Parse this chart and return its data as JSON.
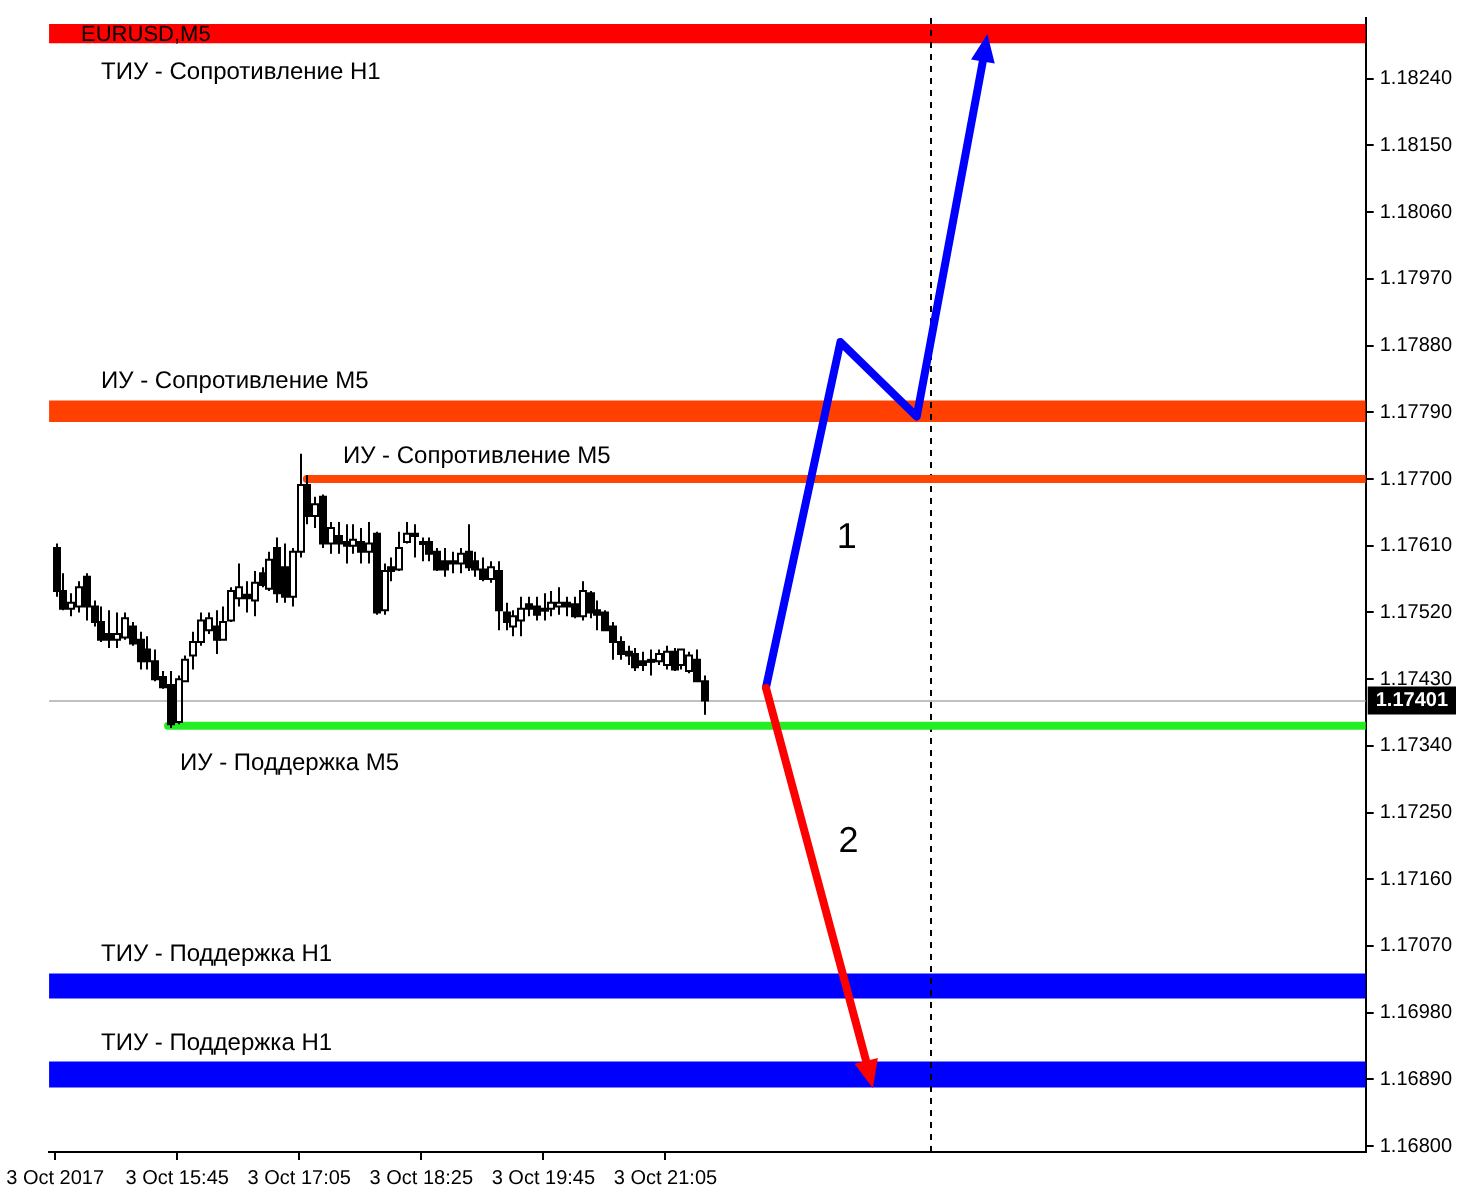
{
  "chart_data": {
    "type": "candlestick",
    "title": "EURUSD,M5",
    "xlim": [
      "2017-10-03T14:21",
      "2017-10-04T04:44"
    ],
    "ylim": [
      1.16792,
      1.18322
    ],
    "xticks": [
      {
        "value": "2017-10-03T14:25",
        "label": "3 Oct 2017"
      },
      {
        "value": "2017-10-03T15:45",
        "label": "3 Oct 15:45"
      },
      {
        "value": "2017-10-03T17:05",
        "label": "3 Oct 17:05"
      },
      {
        "value": "2017-10-03T18:25",
        "label": "3 Oct 18:25"
      },
      {
        "value": "2017-10-03T19:45",
        "label": "3 Oct 19:45"
      },
      {
        "value": "2017-10-03T21:05",
        "label": "3 Oct 21:05"
      }
    ],
    "yticks": [
      {
        "value": 1.168,
        "label": "1.16800"
      },
      {
        "value": 1.1689,
        "label": "1.16890"
      },
      {
        "value": 1.1698,
        "label": "1.16980"
      },
      {
        "value": 1.1707,
        "label": "1.17070"
      },
      {
        "value": 1.1716,
        "label": "1.17160"
      },
      {
        "value": 1.1725,
        "label": "1.17250"
      },
      {
        "value": 1.1734,
        "label": "1.17340"
      },
      {
        "value": 1.1743,
        "label": "1.17430"
      },
      {
        "value": 1.1752,
        "label": "1.17520"
      },
      {
        "value": 1.1761,
        "label": "1.17610"
      },
      {
        "value": 1.177,
        "label": "1.17700"
      },
      {
        "value": 1.1779,
        "label": "1.17790"
      },
      {
        "value": 1.1788,
        "label": "1.17880"
      },
      {
        "value": 1.1797,
        "label": "1.17970"
      },
      {
        "value": 1.1806,
        "label": "1.18060"
      },
      {
        "value": 1.1815,
        "label": "1.18150"
      },
      {
        "value": 1.1824,
        "label": "1.18240"
      }
    ],
    "grid": false,
    "legend": false,
    "series": [
      {
        "color": "#000000",
        "x": [
          "2017-10-03T14:25",
          "2017-10-03T14:30",
          "2017-10-03T14:35",
          "2017-10-03T14:40",
          "2017-10-03T14:45",
          "2017-10-03T14:50",
          "2017-10-03T14:55",
          "2017-10-03T15:00",
          "2017-10-03T15:05",
          "2017-10-03T15:10",
          "2017-10-03T15:15",
          "2017-10-03T15:20",
          "2017-10-03T15:25",
          "2017-10-03T15:30",
          "2017-10-03T15:35",
          "2017-10-03T15:40",
          "2017-10-03T15:45",
          "2017-10-03T15:50",
          "2017-10-03T15:55",
          "2017-10-03T16:00",
          "2017-10-03T16:05",
          "2017-10-03T16:10",
          "2017-10-03T16:15",
          "2017-10-03T16:20",
          "2017-10-03T16:25",
          "2017-10-03T16:30",
          "2017-10-03T16:35",
          "2017-10-03T16:40",
          "2017-10-03T16:45",
          "2017-10-03T16:50",
          "2017-10-03T16:55",
          "2017-10-03T17:00",
          "2017-10-03T17:05",
          "2017-10-03T17:10",
          "2017-10-03T17:15",
          "2017-10-03T17:20",
          "2017-10-03T17:25",
          "2017-10-03T17:30",
          "2017-10-03T17:35",
          "2017-10-03T17:40",
          "2017-10-03T17:45",
          "2017-10-03T17:50",
          "2017-10-03T17:55",
          "2017-10-03T18:00",
          "2017-10-03T18:05",
          "2017-10-03T18:10",
          "2017-10-03T18:15",
          "2017-10-03T18:20",
          "2017-10-03T18:25",
          "2017-10-03T18:30",
          "2017-10-03T18:35",
          "2017-10-03T18:40",
          "2017-10-03T18:45",
          "2017-10-03T18:50",
          "2017-10-03T18:55",
          "2017-10-03T19:00",
          "2017-10-03T19:05",
          "2017-10-03T19:10",
          "2017-10-03T19:15",
          "2017-10-03T19:20",
          "2017-10-03T19:25",
          "2017-10-03T19:30",
          "2017-10-03T19:35",
          "2017-10-03T19:40",
          "2017-10-03T19:45",
          "2017-10-03T19:50",
          "2017-10-03T19:55",
          "2017-10-03T20:00",
          "2017-10-03T20:05",
          "2017-10-03T20:10",
          "2017-10-03T20:15",
          "2017-10-03T20:20",
          "2017-10-03T20:25",
          "2017-10-03T20:30",
          "2017-10-03T20:35",
          "2017-10-03T20:40",
          "2017-10-03T20:45",
          "2017-10-03T20:50",
          "2017-10-03T20:55",
          "2017-10-03T21:00",
          "2017-10-03T21:05",
          "2017-10-03T21:10",
          "2017-10-03T21:15",
          "2017-10-03T21:20",
          "2017-10-03T21:25",
          "2017-10-03T21:30"
        ],
        "ohlc": [
          [
            1.17607,
            1.17613,
            1.17541,
            1.17549
          ],
          [
            1.17549,
            1.17573,
            1.17523,
            1.17525
          ],
          [
            1.17525,
            1.17546,
            1.17515,
            1.17533
          ],
          [
            1.17528,
            1.17562,
            1.1752,
            1.17554
          ],
          [
            1.17568,
            1.17573,
            1.17509,
            1.17528
          ],
          [
            1.17528,
            1.17536,
            1.17501,
            1.17507
          ],
          [
            1.17507,
            1.17528,
            1.1748,
            1.17483
          ],
          [
            1.17491,
            1.17523,
            1.17472,
            1.17483
          ],
          [
            1.17483,
            1.1752,
            1.17472,
            1.17491
          ],
          [
            1.17486,
            1.1752,
            1.17483,
            1.17512
          ],
          [
            1.17501,
            1.17507,
            1.17475,
            1.17478
          ],
          [
            1.17483,
            1.17494,
            1.17443,
            1.17454
          ],
          [
            1.1747,
            1.17488,
            1.17443,
            1.17454
          ],
          [
            1.17454,
            1.1747,
            1.17427,
            1.1743
          ],
          [
            1.17433,
            1.17441,
            1.17417,
            1.17419
          ],
          [
            1.17422,
            1.17441,
            1.17364,
            1.17369
          ],
          [
            1.17372,
            1.17435,
            1.17369,
            1.1743
          ],
          [
            1.17427,
            1.17462,
            1.17427,
            1.17456
          ],
          [
            1.17462,
            1.17494,
            1.17443,
            1.1748
          ],
          [
            1.1748,
            1.1752,
            1.17475,
            1.17509
          ],
          [
            1.17496,
            1.1752,
            1.17491,
            1.17512
          ],
          [
            1.17501,
            1.17523,
            1.17464,
            1.17483
          ],
          [
            1.17483,
            1.17528,
            1.17483,
            1.17507
          ],
          [
            1.17509,
            1.17554,
            1.17507,
            1.17549
          ],
          [
            1.17539,
            1.17586,
            1.17528,
            1.17554
          ],
          [
            1.17544,
            1.17562,
            1.1752,
            1.17539
          ],
          [
            1.17536,
            1.17576,
            1.17515,
            1.1756
          ],
          [
            1.17573,
            1.17581,
            1.17554,
            1.17557
          ],
          [
            1.17552,
            1.17602,
            1.17549,
            1.17591
          ],
          [
            1.17607,
            1.17621,
            1.17533,
            1.17546
          ],
          [
            1.17581,
            1.17613,
            1.17533,
            1.17541
          ],
          [
            1.17541,
            1.17607,
            1.17528,
            1.17602
          ],
          [
            1.17602,
            1.17734,
            1.17594,
            1.17692
          ],
          [
            1.17692,
            1.17705,
            1.17639,
            1.1765
          ],
          [
            1.1765,
            1.17676,
            1.17634,
            1.17666
          ],
          [
            1.17676,
            1.17679,
            1.17607,
            1.17613
          ],
          [
            1.17613,
            1.17642,
            1.17599,
            1.17634
          ],
          [
            1.17623,
            1.17642,
            1.17599,
            1.17613
          ],
          [
            1.17615,
            1.17639,
            1.17586,
            1.1761
          ],
          [
            1.1761,
            1.17639,
            1.17599,
            1.17618
          ],
          [
            1.17615,
            1.17634,
            1.17586,
            1.17602
          ],
          [
            1.17602,
            1.17642,
            1.17586,
            1.17613
          ],
          [
            1.17626,
            1.17629,
            1.17517,
            1.1752
          ],
          [
            1.17523,
            1.17586,
            1.17517,
            1.17576
          ],
          [
            1.17581,
            1.17594,
            1.17562,
            1.17576
          ],
          [
            1.17578,
            1.17629,
            1.17576,
            1.17607
          ],
          [
            1.17615,
            1.17642,
            1.17613,
            1.17626
          ],
          [
            1.17626,
            1.17639,
            1.17594,
            1.17623
          ],
          [
            1.17615,
            1.17621,
            1.17589,
            1.17613
          ],
          [
            1.17615,
            1.17621,
            1.17589,
            1.17599
          ],
          [
            1.17602,
            1.17607,
            1.17576,
            1.17578
          ],
          [
            1.17589,
            1.17607,
            1.17568,
            1.17578
          ],
          [
            1.17589,
            1.17602,
            1.17573,
            1.17586
          ],
          [
            1.17586,
            1.17607,
            1.17573,
            1.17599
          ],
          [
            1.17602,
            1.17639,
            1.17576,
            1.17581
          ],
          [
            1.17589,
            1.17602,
            1.17568,
            1.17578
          ],
          [
            1.17578,
            1.17594,
            1.17562,
            1.17565
          ],
          [
            1.17565,
            1.17589,
            1.1756,
            1.17581
          ],
          [
            1.17576,
            1.17589,
            1.17496,
            1.17523
          ],
          [
            1.1752,
            1.17533,
            1.17496,
            1.17507
          ],
          [
            1.17501,
            1.17523,
            1.17488,
            1.17515
          ],
          [
            1.17509,
            1.17541,
            1.17488,
            1.17525
          ],
          [
            1.17531,
            1.17541,
            1.17515,
            1.17525
          ],
          [
            1.17528,
            1.17541,
            1.17509,
            1.17517
          ],
          [
            1.17525,
            1.17546,
            1.17509,
            1.17523
          ],
          [
            1.17525,
            1.17549,
            1.17515,
            1.17533
          ],
          [
            1.17528,
            1.17554,
            1.17517,
            1.17533
          ],
          [
            1.17533,
            1.17541,
            1.17515,
            1.17528
          ],
          [
            1.17531,
            1.17541,
            1.17512,
            1.17515
          ],
          [
            1.17515,
            1.17562,
            1.17509,
            1.17549
          ],
          [
            1.17546,
            1.17549,
            1.17512,
            1.1752
          ],
          [
            1.17523,
            1.17536,
            1.17496,
            1.17517
          ],
          [
            1.1752,
            1.17523,
            1.17496,
            1.17496
          ],
          [
            1.17501,
            1.17507,
            1.17456,
            1.1748
          ],
          [
            1.1748,
            1.17488,
            1.17456,
            1.17464
          ],
          [
            1.17467,
            1.17475,
            1.17449,
            1.17462
          ],
          [
            1.17464,
            1.17472,
            1.17441,
            1.17446
          ],
          [
            1.17454,
            1.17467,
            1.17441,
            1.17449
          ],
          [
            1.17456,
            1.1747,
            1.17435,
            1.17454
          ],
          [
            1.17454,
            1.1747,
            1.17449,
            1.17464
          ],
          [
            1.17449,
            1.17475,
            1.17443,
            1.17467
          ],
          [
            1.17467,
            1.17472,
            1.17441,
            1.17443
          ],
          [
            1.17449,
            1.1747,
            1.17443,
            1.1747
          ],
          [
            1.17441,
            1.17467,
            1.17438,
            1.17462
          ],
          [
            1.17456,
            1.1747,
            1.17427,
            1.17427
          ],
          [
            1.17427,
            1.17435,
            1.17382,
            1.17401
          ]
        ]
      },
      {
        "type": "line",
        "name": "ИУ - Сопротивление M5",
        "color": "#ff4500",
        "x": [
          "2017-10-03T17:10",
          "2017-10-04T04:44"
        ],
        "values": [
          1.177,
          1.177
        ]
      },
      {
        "type": "line",
        "name": "ИУ - Поддержка M5",
        "color": "#22ee22",
        "x": [
          "2017-10-03T15:39",
          "2017-10-04T04:44"
        ],
        "values": [
          1.17367,
          1.17367
        ]
      }
    ],
    "bands": [
      {
        "axis": "y",
        "from": 1.18288,
        "to": 1.18314,
        "label": "ТИУ - Сопротивление H1",
        "color": "#ff0000"
      },
      {
        "axis": "y",
        "from": 1.17777,
        "to": 1.17806,
        "label": "ИУ - Сопротивление M5",
        "color": "#ff4000"
      },
      {
        "axis": "y",
        "from": 1.16999,
        "to": 1.17033,
        "label": "ТИУ - Поддержка H1",
        "color": "#0000ff"
      },
      {
        "axis": "y",
        "from": 1.16879,
        "to": 1.16914,
        "label": "ТИУ - Поддержка H1",
        "color": "#0000ff"
      }
    ],
    "ref_lines": [
      {
        "axis": "y",
        "value": 1.17401,
        "label": "1.17401",
        "color": "#c0c0c0"
      },
      {
        "axis": "x",
        "value": "2017-10-03T23:59",
        "color": "#000000",
        "line_style": "dashed"
      }
    ],
    "annotations": [
      "1",
      "2"
    ]
  }
}
